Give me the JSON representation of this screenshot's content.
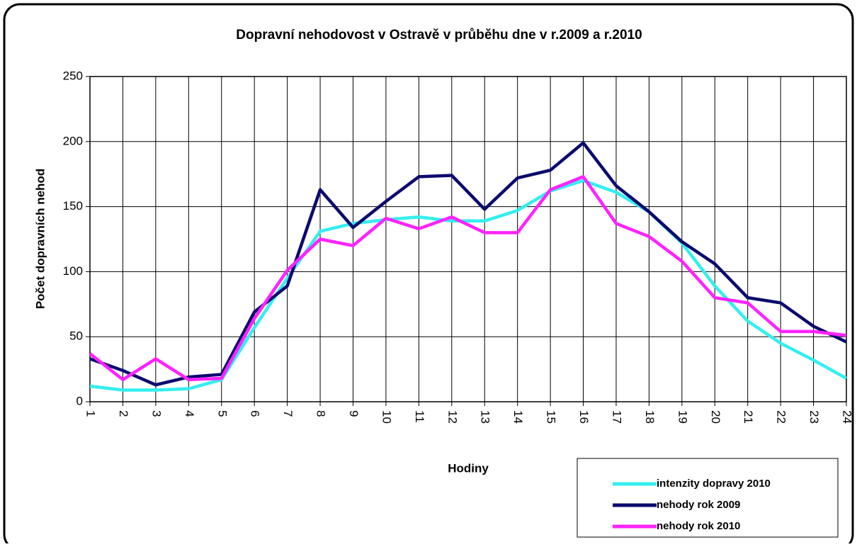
{
  "chart_data": {
    "type": "line",
    "title": "Dopravní nehodovost v Ostravě v průběhu dne v r.2009 a r.2010",
    "x_label": "Hodiny",
    "y_label": "Počet dopravních nehod",
    "categories": [
      "1",
      "2",
      "3",
      "4",
      "5",
      "6",
      "7",
      "8",
      "9",
      "10",
      "11",
      "12",
      "13",
      "14",
      "15",
      "16",
      "17",
      "18",
      "19",
      "20",
      "21",
      "22",
      "23",
      "24"
    ],
    "series": [
      {
        "name": "intenzity dopravy 2010",
        "color": "#33eef0",
        "values": [
          12,
          9,
          9,
          10,
          17,
          57,
          95,
          131,
          137,
          140,
          142,
          139,
          139,
          147,
          162,
          170,
          161,
          146,
          122,
          89,
          62,
          45,
          32,
          18
        ]
      },
      {
        "name": "nehody rok 2009",
        "color": "#0a0a6e",
        "values": [
          33,
          24,
          13,
          19,
          21,
          69,
          89,
          163,
          134,
          154,
          173,
          174,
          148,
          172,
          178,
          199,
          166,
          146,
          123,
          106,
          80,
          76,
          58,
          46
        ]
      },
      {
        "name": "nehody rok 2010",
        "color": "#ff22ff",
        "values": [
          37,
          17,
          33,
          17,
          18,
          64,
          101,
          125,
          120,
          141,
          133,
          142,
          130,
          130,
          163,
          173,
          137,
          127,
          108,
          80,
          76,
          54,
          54,
          51
        ]
      }
    ],
    "ylim": [
      0,
      250
    ],
    "yticks": [
      0,
      50,
      100,
      150,
      200,
      250
    ],
    "grid": true,
    "legend": "lower right"
  }
}
